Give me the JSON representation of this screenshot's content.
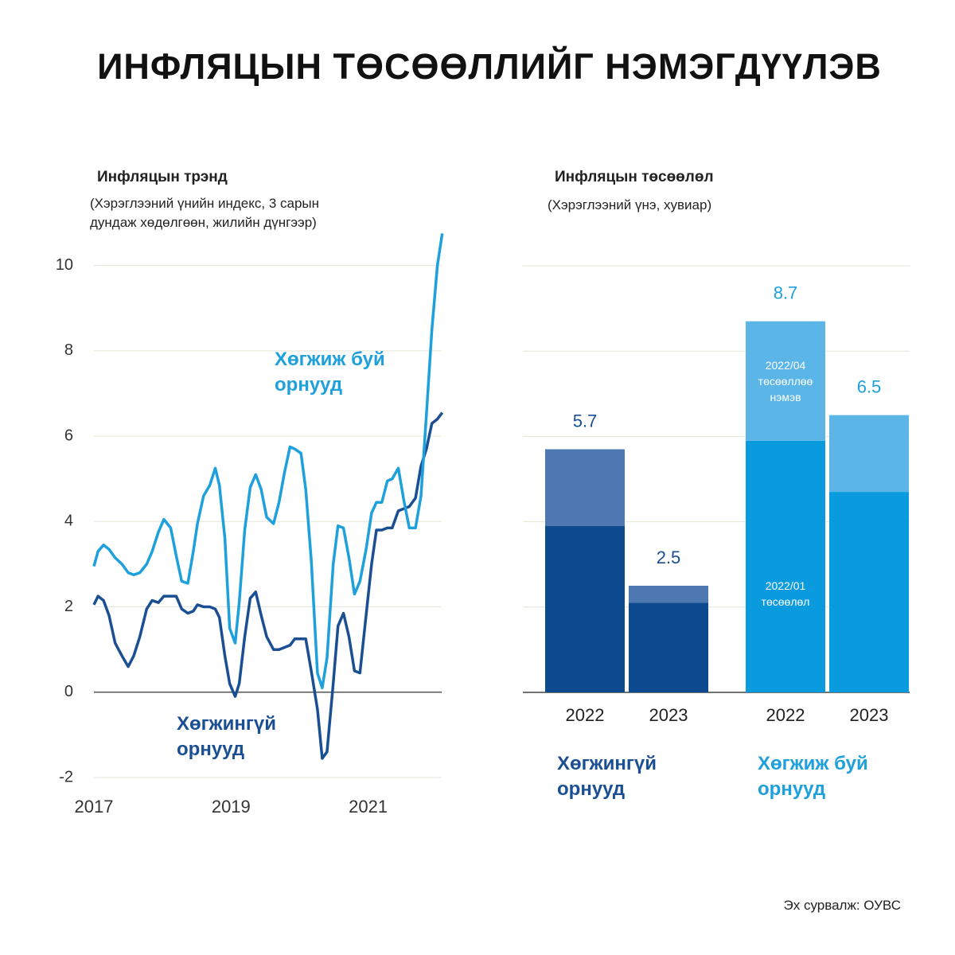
{
  "title": "ИНФЛЯЦЫН ТӨСӨӨЛЛИЙГ НЭМЭГДҮҮЛЭВ",
  "source": "Эх сурвалж: ОУВС",
  "chart_data": [
    {
      "type": "line",
      "title": "Инфляцын трэнд",
      "subtitle": "(Хэрэглээний үнийн индекс, 3 сарын дундаж хөдөлгөөн, жилийн дүнгээр)",
      "x": [
        2017.0,
        2017.06,
        2017.14,
        2017.22,
        2017.31,
        2017.41,
        2017.5,
        2017.58,
        2017.67,
        2017.77,
        2017.85,
        2017.94,
        2018.02,
        2018.12,
        2018.2,
        2018.28,
        2018.37,
        2018.45,
        2018.51,
        2018.6,
        2018.69,
        2018.77,
        2018.83,
        2018.91,
        2018.98,
        2019.06,
        2019.12,
        2019.2,
        2019.28,
        2019.36,
        2019.44,
        2019.52,
        2019.62,
        2019.7,
        2019.78,
        2019.86,
        2019.93,
        2020.02,
        2020.09,
        2020.17,
        2020.26,
        2020.33,
        2020.4,
        2020.49,
        2020.56,
        2020.64,
        2020.72,
        2020.8,
        2020.88,
        2020.97,
        2021.05,
        2021.12,
        2021.2,
        2021.28,
        2021.35,
        2021.44,
        2021.52,
        2021.6,
        2021.69,
        2021.77,
        2021.85,
        2021.93,
        2022.01,
        2022.08
      ],
      "series": [
        {
          "name": "Хөгжингүй орнууд",
          "color": "#1b4f93",
          "values": [
            2.05,
            2.25,
            2.15,
            1.8,
            1.15,
            0.85,
            0.6,
            0.85,
            1.3,
            1.95,
            2.15,
            2.1,
            2.25,
            2.25,
            2.25,
            1.95,
            1.85,
            1.9,
            2.05,
            2.0,
            2.0,
            1.95,
            1.75,
            0.85,
            0.2,
            -0.1,
            0.2,
            1.3,
            2.2,
            2.35,
            1.8,
            1.3,
            1.0,
            1.0,
            1.05,
            1.1,
            1.25,
            1.25,
            1.25,
            0.5,
            -0.4,
            -1.55,
            -1.4,
            0.2,
            1.55,
            1.85,
            1.3,
            0.5,
            0.45,
            1.8,
            3.0,
            3.8,
            3.8,
            3.85,
            3.85,
            4.25,
            4.3,
            4.35,
            4.55,
            5.3,
            5.7,
            6.3,
            6.4,
            6.55
          ]
        },
        {
          "name": "Хөгжиж буй орнууд",
          "color": "#1ea0dc",
          "values": [
            2.95,
            3.3,
            3.45,
            3.35,
            3.15,
            3.0,
            2.8,
            2.75,
            2.8,
            3.0,
            3.3,
            3.75,
            4.05,
            3.85,
            3.2,
            2.6,
            2.55,
            3.3,
            3.95,
            4.6,
            4.85,
            5.25,
            4.85,
            3.6,
            1.5,
            1.15,
            2.1,
            3.8,
            4.8,
            5.1,
            4.75,
            4.1,
            3.95,
            4.45,
            5.15,
            5.75,
            5.7,
            5.6,
            4.75,
            3.1,
            0.45,
            0.1,
            0.8,
            3.0,
            3.9,
            3.85,
            3.15,
            2.3,
            2.6,
            3.35,
            4.2,
            4.45,
            4.45,
            4.95,
            5.0,
            5.25,
            4.5,
            3.85,
            3.85,
            4.6,
            6.5,
            8.5,
            10.0,
            10.75
          ]
        }
      ],
      "xlim": [
        2017,
        2022.2
      ],
      "xticks": [
        2017,
        2019,
        2021
      ],
      "ylim": [
        -2,
        11
      ],
      "yticks": [
        -2,
        0,
        2,
        4,
        6,
        8,
        10
      ],
      "grid": true
    },
    {
      "type": "bar",
      "stacked": true,
      "title": "Инфляцын төсөөлөл",
      "subtitle": "(Хэрэглээний үнэ, хувиар)",
      "categories": [
        "2022",
        "2023",
        "2022",
        "2023"
      ],
      "groups": [
        {
          "name": "Хөгжингүй орнууд",
          "color": "#1b4f93"
        },
        {
          "name": "Хөгжиж буй орнууд",
          "color": "#1ea0dc"
        }
      ],
      "series": [
        {
          "name": "2022/01 төсөөлөл",
          "colors": [
            "#0d4a8f",
            "#0d4a8f",
            "#0a9ade",
            "#0a9ade"
          ],
          "values": [
            3.9,
            2.1,
            5.9,
            4.7
          ]
        },
        {
          "name": "2022/04 төсөөллөө нэмэв",
          "colors": [
            "#4d78b2",
            "#4d78b2",
            "#5bb5e6",
            "#5bb5e6"
          ],
          "values": [
            1.8,
            0.4,
            2.8,
            1.8
          ]
        }
      ],
      "totals": [
        5.7,
        2.5,
        8.7,
        6.5
      ],
      "ylim": [
        0,
        10
      ],
      "gridlines": [
        0,
        2,
        4,
        6,
        8,
        10
      ]
    }
  ]
}
